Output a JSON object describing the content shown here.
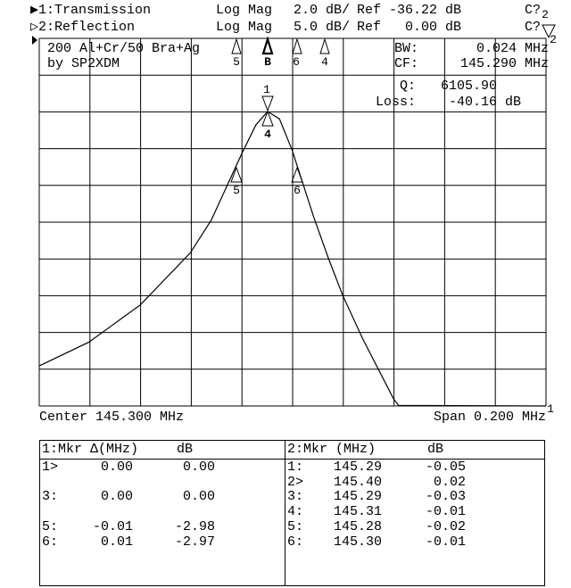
{
  "header": {
    "channels": [
      {
        "indicator": "▶",
        "label": "1:Transmission",
        "format": "Log Mag",
        "scale": "2.0 dB/",
        "ref": "Ref -36.22 dB",
        "cal": "C?"
      },
      {
        "indicator": "▷",
        "label": "2:Reflection",
        "format": "Log Mag",
        "scale": "5.0 dB/",
        "ref": "Ref   0.00 dB",
        "cal": "C?"
      }
    ]
  },
  "annotation": {
    "line1": "200 Al+Cr/50 Bra+Ag",
    "line2": "by SP2XDM"
  },
  "stats": {
    "bw_label": "BW:",
    "bw_value": "0.024 MHz",
    "cf_label": "CF:",
    "cf_value": "145.290 MHz",
    "q_label": "Q:",
    "q_value": "6105.90",
    "loss_label": "Loss:",
    "loss_value": "-40.16 dB"
  },
  "footer": {
    "center": "Center 145.300 MHz",
    "span": "Span 0.200 MHz"
  },
  "markers_top": [
    "5",
    "B",
    "6",
    "4"
  ],
  "markers_trace": {
    "m1": "1",
    "m34": "4",
    "m5": "5",
    "m6": "6",
    "end": "1",
    "ch2a": "2",
    "ch2b": "2"
  },
  "chart_data": {
    "type": "line",
    "xlim": [
      145.2,
      145.4
    ],
    "ylim": [
      -56.22,
      -36.22
    ],
    "x_unit": "MHz",
    "y_unit": "dB",
    "grid": true,
    "divisions": {
      "x": 10,
      "y": 10
    },
    "series": [
      {
        "name": "1:Transmission",
        "x": [
          145.2,
          145.2197,
          145.2399,
          145.2596,
          145.2679,
          145.28,
          145.2855,
          145.2901,
          145.2948,
          145.2998,
          145.3083,
          145.3142,
          145.3198,
          145.3277,
          145.3398,
          145.3418,
          145.4
        ],
        "y": [
          -54.04,
          -52.74,
          -50.72,
          -47.89,
          -46.11,
          -42.47,
          -40.93,
          -40.2,
          -40.6,
          -42.3,
          -45.94,
          -48.21,
          -50.21,
          -52.58,
          -55.82,
          -56.19,
          -56.22
        ]
      }
    ]
  },
  "table": {
    "left": {
      "header": [
        "1:Mkr Δ(MHz)",
        "dB"
      ],
      "rows": [
        [
          "1>",
          "0.00",
          "0.00"
        ],
        [
          "",
          "",
          ""
        ],
        [
          "3:",
          "0.00",
          "0.00"
        ],
        [
          "",
          "",
          ""
        ],
        [
          "5:",
          "-0.01",
          "-2.98"
        ],
        [
          "6:",
          "0.01",
          "-2.97"
        ]
      ]
    },
    "right": {
      "header": [
        "2:Mkr (MHz)",
        "dB"
      ],
      "rows": [
        [
          "1:",
          "145.29",
          "-0.05"
        ],
        [
          "2>",
          "145.40",
          "0.02"
        ],
        [
          "3:",
          "145.29",
          "-0.03"
        ],
        [
          "4:",
          "145.31",
          "-0.01"
        ],
        [
          "5:",
          "145.28",
          "-0.02"
        ],
        [
          "6:",
          "145.30",
          "-0.01"
        ]
      ]
    }
  }
}
